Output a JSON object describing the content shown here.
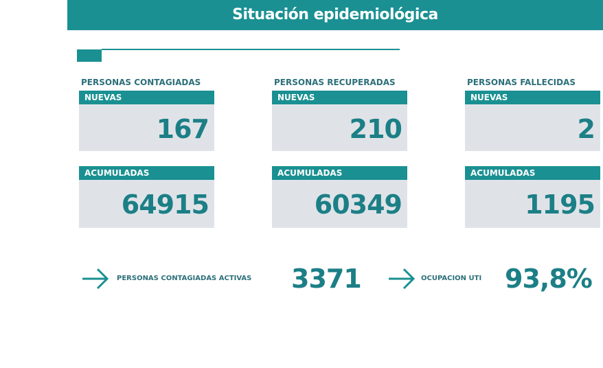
{
  "header": {
    "title": "Situación epidemiológica"
  },
  "groups": [
    {
      "label": "PERSONAS CONTAGIADAS",
      "new_label": "NUEVAS",
      "new_value": 167,
      "total_label": "ACUMULADAS",
      "total_value": 64915
    },
    {
      "label": "PERSONAS RECUPERADAS",
      "new_label": "NUEVAS",
      "new_value": 210,
      "total_label": "ACUMULADAS",
      "total_value": 60349
    },
    {
      "label": "PERSONAS FALLECIDAS",
      "new_label": "NUEVAS",
      "new_value": 2,
      "total_label": "ACUMULADAS",
      "total_value": 1195
    }
  ],
  "summary": [
    {
      "label": "PERSONAS CONTAGIADAS ACTIVAS",
      "value": 3371
    },
    {
      "label": "OCUPACION UTI",
      "value": "93,8%"
    }
  ]
}
